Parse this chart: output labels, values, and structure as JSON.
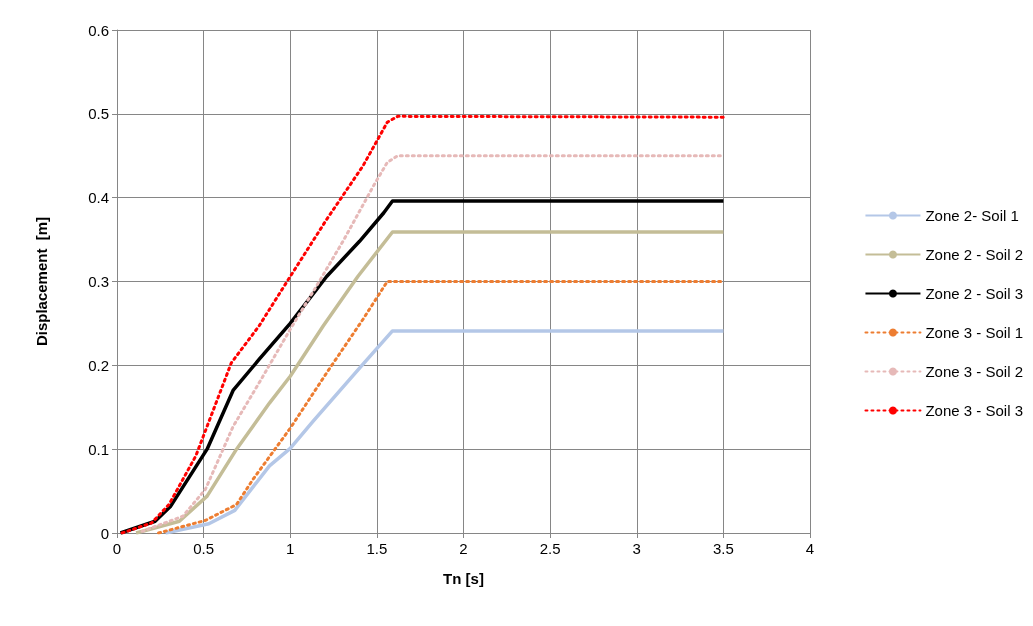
{
  "chart_data": {
    "type": "line",
    "xlabel": "Tn [s]",
    "ylabel": "Displacement  [m]",
    "xlim": [
      0,
      4
    ],
    "xticks": [
      0,
      0.5,
      1,
      1.5,
      2,
      2.5,
      3,
      3.5,
      4
    ],
    "ylim": [
      0,
      0.6
    ],
    "yticks": [
      0,
      0.1,
      0.2,
      0.3,
      0.4,
      0.5,
      0.6
    ],
    "grid": true,
    "legend": "right",
    "marker": "none",
    "series": [
      {
        "name": "Zone 2- Soil 1",
        "color": "#b4c7e7",
        "line_style": "solid",
        "x": [
          0.28,
          0.53,
          0.68,
          0.88,
          1.0,
          1.13,
          1.41,
          1.59,
          3.5
        ],
        "values": [
          0,
          0.011,
          0.027,
          0.08,
          0.101,
          0.133,
          0.199,
          0.241,
          0.241
        ]
      },
      {
        "name": "Zone 2 - Soil 2",
        "color": "#c4bd97",
        "line_style": "solid",
        "x": [
          0.11,
          0.36,
          0.52,
          0.69,
          0.88,
          1.0,
          1.19,
          1.39,
          1.59,
          3.5
        ],
        "values": [
          0,
          0.014,
          0.044,
          0.1,
          0.155,
          0.187,
          0.247,
          0.306,
          0.359,
          0.359
        ]
      },
      {
        "name": "Zone 2 - Soil 3",
        "color": "#000000",
        "line_style": "solid",
        "x": [
          0.02,
          0.22,
          0.31,
          0.52,
          0.67,
          0.82,
          1.0,
          1.21,
          1.4,
          1.54,
          1.59,
          3.5
        ],
        "values": [
          0,
          0.014,
          0.032,
          0.1,
          0.17,
          0.207,
          0.25,
          0.306,
          0.348,
          0.382,
          0.396,
          0.396
        ]
      },
      {
        "name": "Zone 3 - Soil 1",
        "color": "#ed7d31",
        "line_style": "dotted",
        "x": [
          0.24,
          0.51,
          0.69,
          0.785,
          1.0,
          1.21,
          1.42,
          1.56,
          1.62,
          3.5
        ],
        "values": [
          0,
          0.015,
          0.034,
          0.064,
          0.125,
          0.191,
          0.255,
          0.3,
          0.3,
          0.3
        ]
      },
      {
        "name": "Zone 3 - Soil 2",
        "color": "#e6b9b8",
        "line_style": "dotted",
        "x": [
          0.145,
          0.38,
          0.51,
          0.67,
          0.82,
          1.0,
          1.15,
          1.31,
          1.48,
          1.56,
          1.62,
          3.5
        ],
        "values": [
          0.002,
          0.02,
          0.052,
          0.127,
          0.179,
          0.243,
          0.294,
          0.35,
          0.414,
          0.442,
          0.45,
          0.45
        ]
      },
      {
        "name": "Zone 3 - Soil 3",
        "color": "#ff0000",
        "line_style": "dotted",
        "x": [
          0.03,
          0.2,
          0.3,
          0.455,
          0.66,
          0.82,
          1.0,
          1.21,
          1.42,
          1.56,
          1.62,
          3.5
        ],
        "values": [
          0,
          0.012,
          0.034,
          0.092,
          0.203,
          0.247,
          0.306,
          0.374,
          0.438,
          0.49,
          0.497,
          0.496
        ]
      }
    ]
  }
}
